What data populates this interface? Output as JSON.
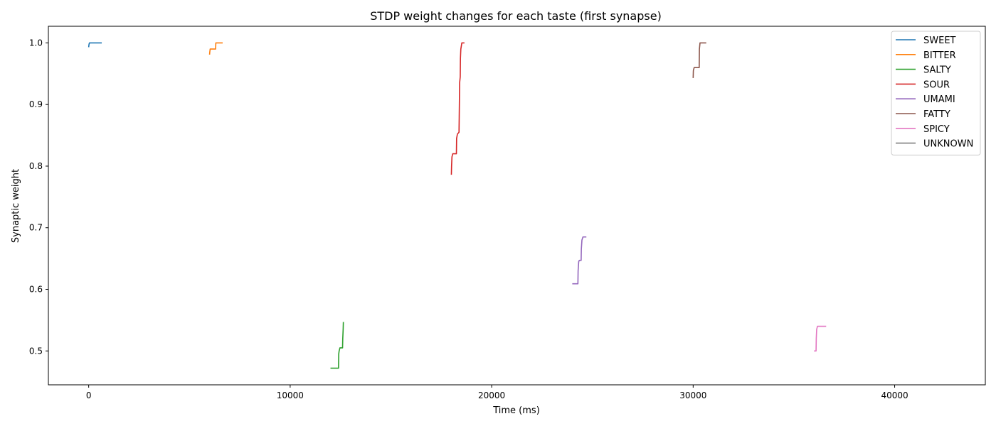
{
  "chart_data": {
    "type": "line",
    "title": "STDP weight changes for each taste (first synapse)",
    "xlabel": "Time (ms)",
    "ylabel": "Synaptic weight",
    "xlim": [
      -2000,
      44500
    ],
    "ylim": [
      0.445,
      1.027
    ],
    "xticks": [
      0,
      10000,
      20000,
      30000,
      40000
    ],
    "yticks": [
      0.5,
      0.6,
      0.7,
      0.8,
      0.9,
      1.0
    ],
    "grid": false,
    "legend_position": "top-right",
    "series": [
      {
        "name": "SWEET",
        "color": "#1f77b4",
        "points": [
          [
            0,
            0.993
          ],
          [
            10,
            0.996
          ],
          [
            20,
            0.998
          ],
          [
            40,
            1.0
          ],
          [
            650,
            1.0
          ]
        ]
      },
      {
        "name": "BITTER",
        "color": "#ff7f0e",
        "points": [
          [
            6000,
            0.981
          ],
          [
            6010,
            0.985
          ],
          [
            6030,
            0.99
          ],
          [
            6300,
            0.99
          ],
          [
            6310,
            1.0
          ],
          [
            6650,
            1.0
          ]
        ]
      },
      {
        "name": "SALTY",
        "color": "#2ca02c",
        "points": [
          [
            12000,
            0.472
          ],
          [
            12400,
            0.472
          ],
          [
            12410,
            0.495
          ],
          [
            12430,
            0.5
          ],
          [
            12470,
            0.505
          ],
          [
            12600,
            0.505
          ],
          [
            12610,
            0.52
          ],
          [
            12630,
            0.535
          ],
          [
            12640,
            0.547
          ]
        ]
      },
      {
        "name": "SOUR",
        "color": "#d62728",
        "points": [
          [
            18000,
            0.786
          ],
          [
            18010,
            0.8
          ],
          [
            18030,
            0.815
          ],
          [
            18070,
            0.82
          ],
          [
            18250,
            0.82
          ],
          [
            18260,
            0.845
          ],
          [
            18300,
            0.852
          ],
          [
            18380,
            0.855
          ],
          [
            18390,
            0.88
          ],
          [
            18410,
            0.935
          ],
          [
            18440,
            0.945
          ],
          [
            18450,
            0.975
          ],
          [
            18470,
            0.99
          ],
          [
            18520,
            1.0
          ],
          [
            18650,
            1.0
          ]
        ]
      },
      {
        "name": "UMAMI",
        "color": "#9467bd",
        "points": [
          [
            24000,
            0.609
          ],
          [
            24280,
            0.609
          ],
          [
            24290,
            0.63
          ],
          [
            24320,
            0.645
          ],
          [
            24350,
            0.647
          ],
          [
            24440,
            0.647
          ],
          [
            24450,
            0.665
          ],
          [
            24480,
            0.68
          ],
          [
            24530,
            0.685
          ],
          [
            24700,
            0.685
          ]
        ]
      },
      {
        "name": "FATTY",
        "color": "#8c564b",
        "points": [
          [
            30000,
            0.943
          ],
          [
            30010,
            0.955
          ],
          [
            30050,
            0.96
          ],
          [
            30300,
            0.96
          ],
          [
            30310,
            0.99
          ],
          [
            30340,
            1.0
          ],
          [
            30650,
            1.0
          ]
        ]
      },
      {
        "name": "SPICY",
        "color": "#e377c2",
        "points": [
          [
            36000,
            0.5
          ],
          [
            36100,
            0.5
          ],
          [
            36110,
            0.52
          ],
          [
            36130,
            0.535
          ],
          [
            36170,
            0.54
          ],
          [
            36600,
            0.54
          ]
        ]
      },
      {
        "name": "UNKNOWN",
        "color": "#7f7f7f",
        "points": []
      }
    ]
  }
}
